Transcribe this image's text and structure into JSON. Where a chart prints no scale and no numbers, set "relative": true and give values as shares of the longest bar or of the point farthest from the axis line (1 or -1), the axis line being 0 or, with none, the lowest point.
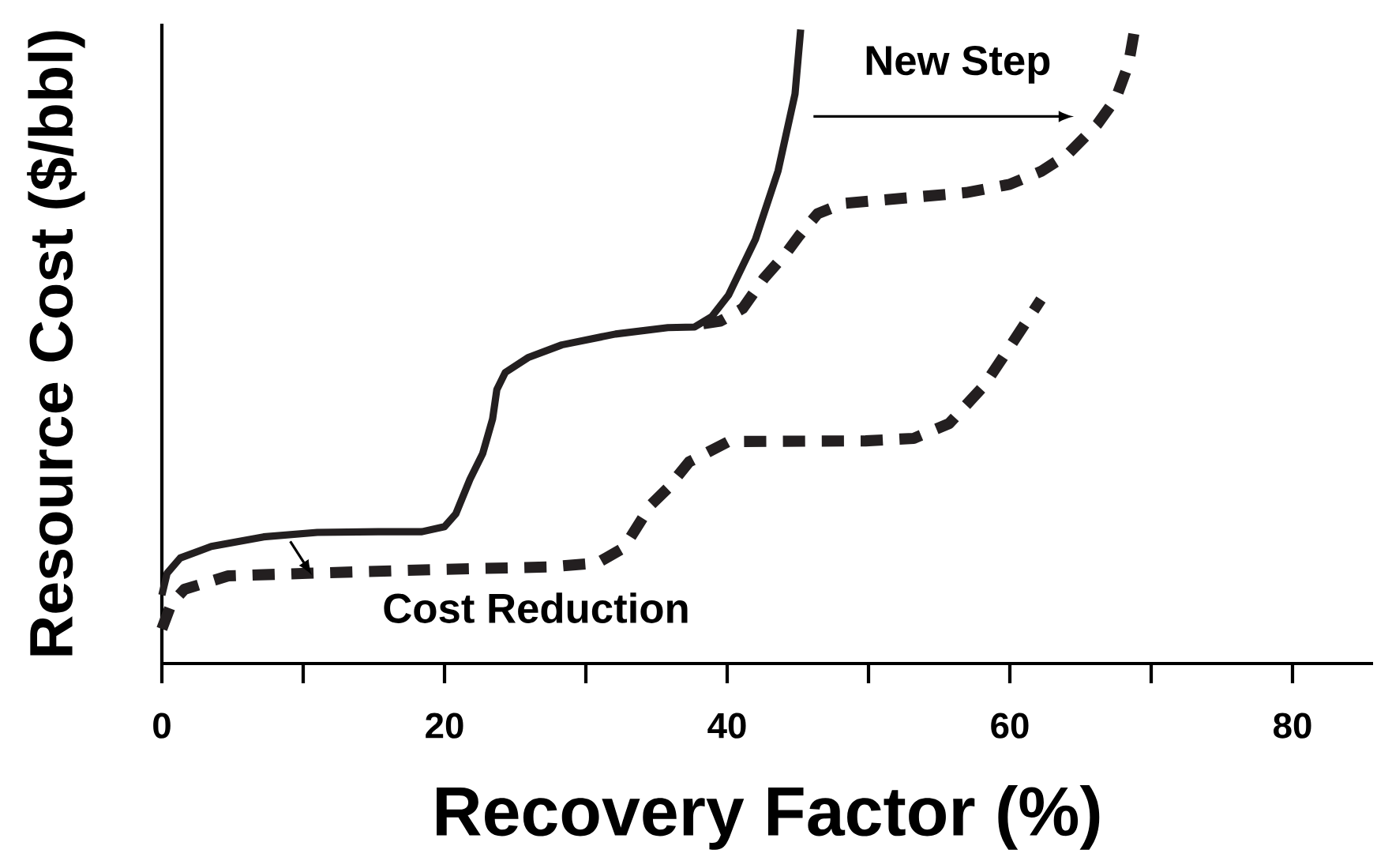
{
  "chart_data": {
    "type": "line",
    "relative": true,
    "xlabel": "Recovery Factor (%)",
    "ylabel": "Resource Cost ($/bbl)",
    "xlim": [
      0,
      85.7
    ],
    "xticks": [
      0,
      20,
      40,
      60,
      80
    ],
    "annotations": [
      "New Step",
      "Cost Reduction"
    ],
    "series": [
      {
        "color": "#231f20",
        "line_style": "solid",
        "x": [
          0,
          0.37,
          1.3,
          3.5,
          7.2,
          11,
          15.3,
          18.4,
          20,
          20.8,
          21.8,
          22.7,
          23.4,
          23.7,
          24.3,
          25.9,
          28.3,
          32.1,
          35.8,
          37.7,
          38.9,
          40.1,
          42,
          43.6,
          44.8,
          45.2
        ],
        "values": [
          0.107,
          0.141,
          0.165,
          0.183,
          0.198,
          0.205,
          0.206,
          0.206,
          0.214,
          0.234,
          0.288,
          0.328,
          0.382,
          0.428,
          0.455,
          0.478,
          0.498,
          0.515,
          0.525,
          0.526,
          0.542,
          0.576,
          0.663,
          0.77,
          0.89,
          0.991
        ]
      },
      {
        "color": "#231f20",
        "line_style": "dashed",
        "x": [
          0,
          0.68,
          1.6,
          4.7,
          10.3,
          19.6,
          27.4,
          30.8,
          32.7,
          34.6,
          35.8,
          37.3,
          40.1,
          49.8,
          53.2,
          55.7,
          58.2,
          60.0,
          62.2
        ],
        "values": [
          0.054,
          0.094,
          0.116,
          0.137,
          0.141,
          0.147,
          0.151,
          0.157,
          0.181,
          0.248,
          0.274,
          0.315,
          0.347,
          0.348,
          0.352,
          0.375,
          0.435,
          0.495,
          0.569
        ]
      },
      {
        "color": "#231f20",
        "line_style": "dashed",
        "x": [
          38.3,
          39.5,
          41.1,
          42.6,
          44.2,
          45.1,
          46.4,
          48.2,
          56.9,
          60.0,
          62.2,
          64.1,
          66.2,
          67.5,
          68.4,
          68.9
        ],
        "values": [
          0.531,
          0.535,
          0.555,
          0.602,
          0.642,
          0.669,
          0.703,
          0.719,
          0.736,
          0.749,
          0.769,
          0.796,
          0.843,
          0.883,
          0.937,
          1
        ]
      }
    ]
  }
}
